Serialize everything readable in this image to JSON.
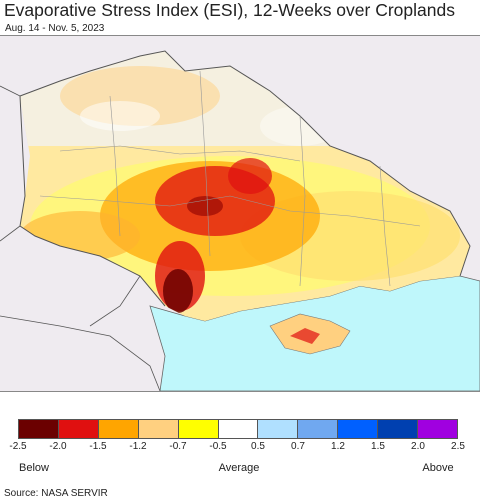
{
  "header": {
    "title": "Evaporative Stress Index (ESI), 12-Weeks over Croplands",
    "date_range": "Aug. 14 - Nov. 5, 2023"
  },
  "legend": {
    "colors": [
      "#6b0000",
      "#e01010",
      "#ffa500",
      "#ffd080",
      "#ffff00",
      "#ffffff",
      "#b0e0ff",
      "#70a8f0",
      "#0060ff",
      "#0040b0",
      "#a000e0"
    ],
    "ticks": [
      "-2.5",
      "-2.0",
      "-1.5",
      "-1.2",
      "-0.7",
      "-0.5",
      "0.5",
      "0.7",
      "1.2",
      "1.5",
      "2.0",
      "2.5"
    ],
    "below_label": "Below",
    "average_label": "Average",
    "above_label": "Above"
  },
  "map": {
    "background_color": "#efebf0",
    "sea_color": "#bff7fb",
    "border_color": "#888888"
  },
  "footer": {
    "source": "Source: NASA SERVIR"
  }
}
